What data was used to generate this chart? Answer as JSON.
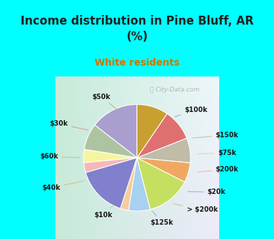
{
  "title": "Income distribution in Pine Bluff, AR\n(%)",
  "subtitle": "White residents",
  "title_color": "#222222",
  "subtitle_color": "#cc7700",
  "background_top": "#00ffff",
  "watermark": "City-Data.com",
  "labels": [
    "$100k",
    "$150k",
    "$75k",
    "$200k",
    "$20k",
    "> $200k",
    "$125k",
    "$10k",
    "$40k",
    "$60k",
    "$30k",
    "$50k"
  ],
  "values": [
    14.5,
    8.0,
    4.0,
    3.0,
    15.5,
    2.5,
    6.5,
    13.5,
    6.0,
    7.5,
    9.5,
    9.5
  ],
  "colors": [
    "#a99ece",
    "#adc4a0",
    "#f5f5a0",
    "#f5b8b8",
    "#8080cc",
    "#f5cda0",
    "#a8d0f0",
    "#c5e060",
    "#f0a860",
    "#c0bca8",
    "#e07070",
    "#c8a030"
  ],
  "startangle": 90,
  "label_fontsize": 7.0,
  "title_fontsize": 12,
  "subtitle_fontsize": 10
}
